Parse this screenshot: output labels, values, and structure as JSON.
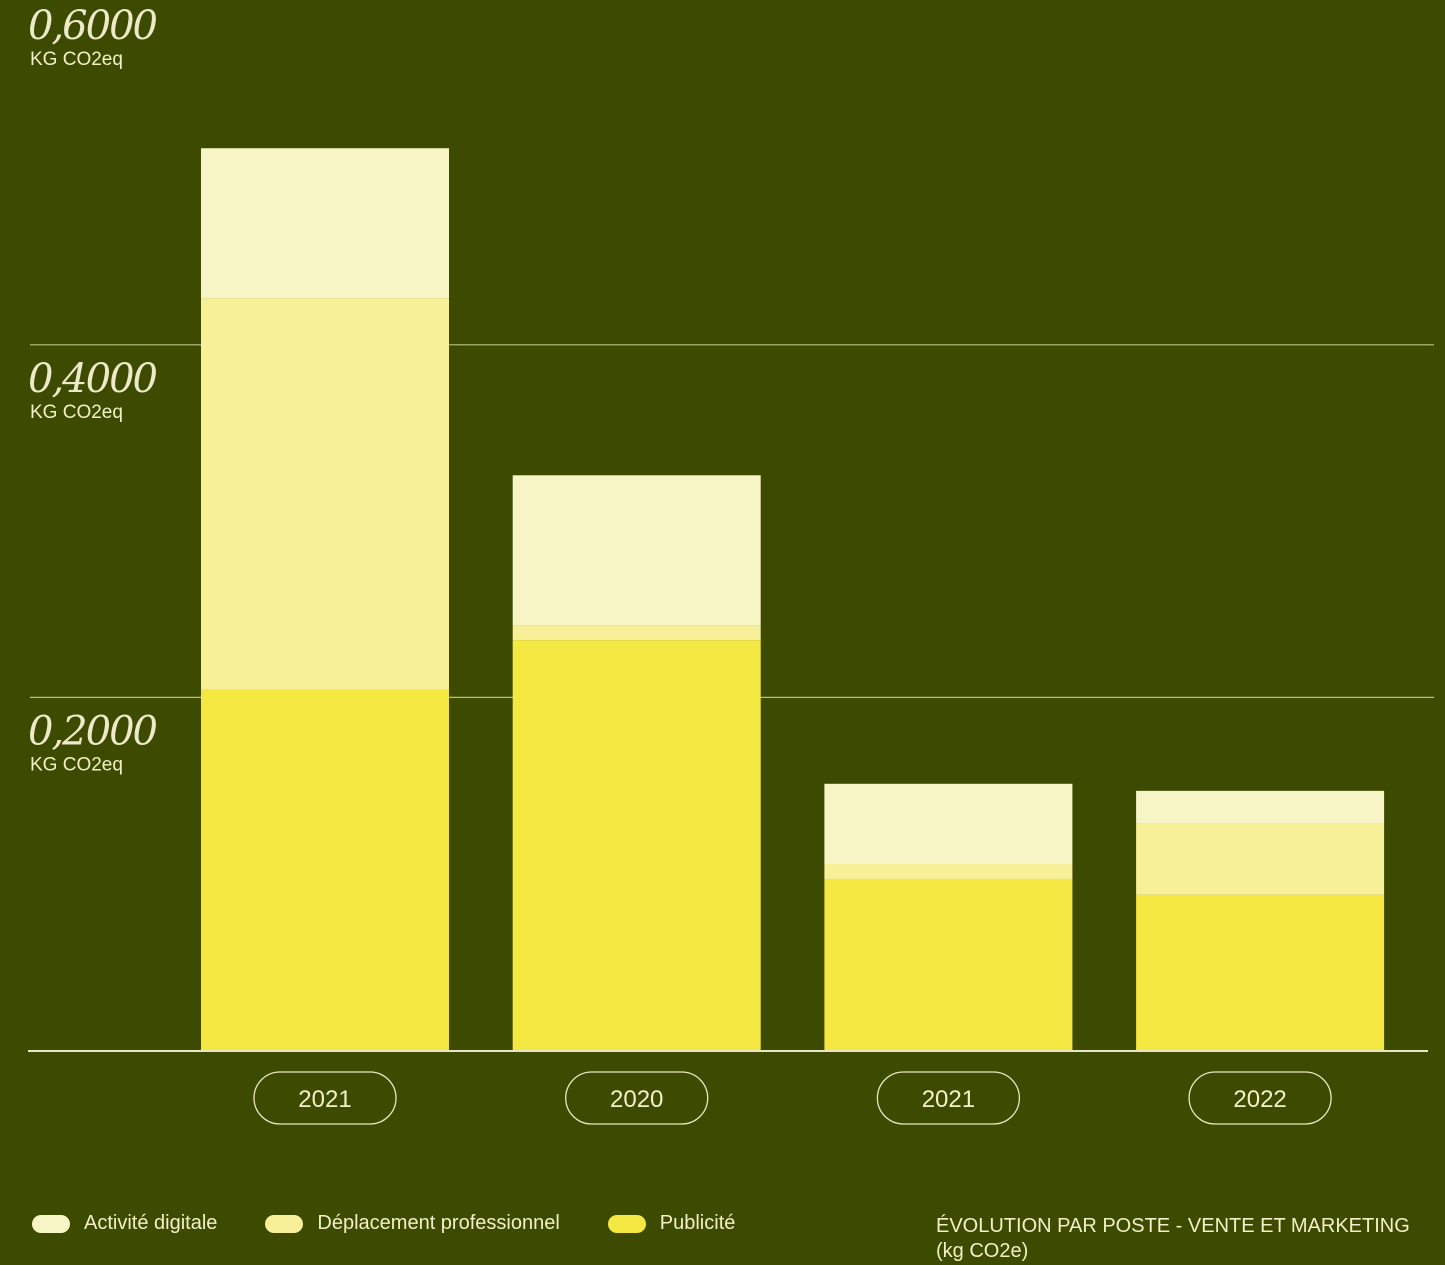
{
  "chart_data": {
    "type": "bar",
    "stacked": true,
    "categories": [
      "2021",
      "2020",
      "2021",
      "2022"
    ],
    "series": [
      {
        "name": "Publicité",
        "color": "#f5e843",
        "values": [
          0.2045,
          0.2325,
          0.097,
          0.088
        ]
      },
      {
        "name": "Déplacement professionnel",
        "color": "#f7f099",
        "values": [
          0.222,
          0.0085,
          0.0085,
          0.0405
        ]
      },
      {
        "name": "Activité digitale",
        "color": "#f7f4c6",
        "values": [
          0.085,
          0.085,
          0.0455,
          0.0185
        ]
      }
    ],
    "y_ticks": [
      {
        "value": 0.2,
        "label": "0,2000",
        "unit": "KG CO2eq"
      },
      {
        "value": 0.4,
        "label": "0,4000",
        "unit": "KG CO2eq"
      },
      {
        "value": 0.6,
        "label": "0,6000",
        "unit": "KG CO2eq"
      }
    ],
    "ylim": [
      0,
      0.6
    ],
    "grid": true,
    "legend_position": "bottom-left",
    "title": "ÉVOLUTION PAR POSTE - VENTE ET MARKETING",
    "subtitle": "(kg CO2e)"
  },
  "colors": {
    "background": "#3c4b00",
    "gridline": "#b9bf8a",
    "axis": "#e9e6c6",
    "text": "#f3efc8"
  }
}
